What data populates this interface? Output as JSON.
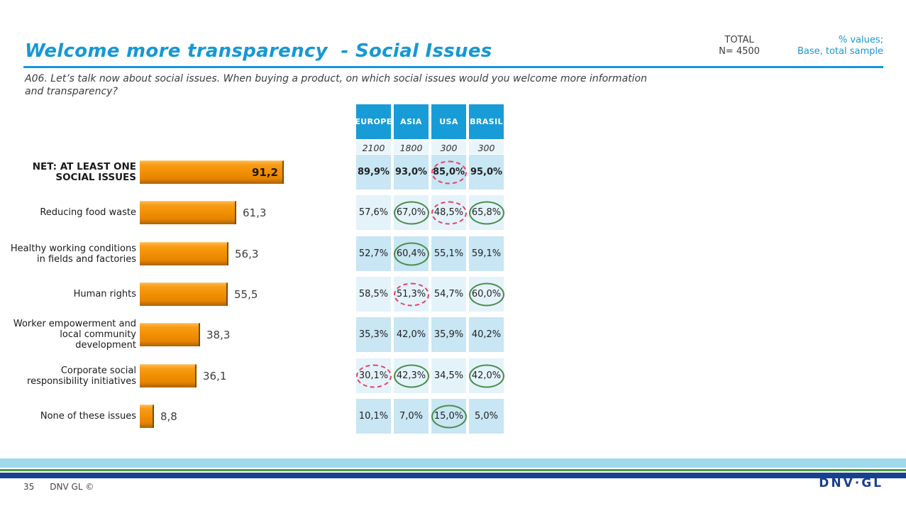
{
  "slide": {
    "title": "Welcome more transparency  - Social Issues",
    "meta": {
      "total_label": "TOTAL",
      "total_base": "N= 4500",
      "note_line1": "% values;",
      "note_line2": "Base, total sample"
    },
    "question": "A06. Let’s talk now about social issues. When buying a product, on which social issues would you welcome more information and transparency?",
    "footer": {
      "page_number": "35",
      "copyright": "DNV GL ©",
      "logo": "DNV·GL"
    }
  },
  "colors": {
    "accent_blue": "#1598D6",
    "table_header_blue": "#189CD8",
    "bar_orange": "#F19000",
    "circle_green": "#4C8C4C",
    "circle_red": "#E8416A",
    "logo_navy": "#1B3F92"
  },
  "chart_data": {
    "type": "bar",
    "orientation": "horizontal",
    "title": "Welcome more transparency - Social Issues",
    "xlabel": "",
    "ylabel": "",
    "xlim": [
      0,
      100
    ],
    "legend": "none",
    "categories": [
      "NET: AT LEAST ONE SOCIAL ISSUES",
      "Reducing food waste",
      "Healthy working conditions in fields and factories",
      "Human rights",
      "Worker empowerment and local community development",
      "Corporate social responsibility initiatives",
      "None of these issues"
    ],
    "values": [
      91.2,
      61.3,
      56.3,
      55.5,
      38.3,
      36.1,
      8.8
    ],
    "value_labels": [
      "91,2",
      "61,3",
      "56,3",
      "55,5",
      "38,3",
      "36,1",
      "8,8"
    ],
    "table": {
      "columns": [
        "EUROPE",
        "ASIA",
        "USA",
        "BRASIL"
      ],
      "bases": [
        "2100",
        "1800",
        "300",
        "300"
      ],
      "rows": [
        {
          "values": [
            "89,9%",
            "93,0%",
            "85,0%",
            "95,0%"
          ],
          "highlights": [
            null,
            null,
            "red",
            null
          ]
        },
        {
          "values": [
            "57,6%",
            "67,0%",
            "48,5%",
            "65,8%"
          ],
          "highlights": [
            null,
            "green",
            "red",
            "green"
          ]
        },
        {
          "values": [
            "52,7%",
            "60,4%",
            "55,1%",
            "59,1%"
          ],
          "highlights": [
            null,
            "green",
            null,
            null
          ]
        },
        {
          "values": [
            "58,5%",
            "51,3%",
            "54,7%",
            "60,0%"
          ],
          "highlights": [
            null,
            "red",
            null,
            "green"
          ]
        },
        {
          "values": [
            "35,3%",
            "42,0%",
            "35,9%",
            "40,2%"
          ],
          "highlights": [
            null,
            null,
            null,
            null
          ]
        },
        {
          "values": [
            "30,1%",
            "42,3%",
            "34,5%",
            "42,0%"
          ],
          "highlights": [
            "red",
            "green",
            null,
            "green"
          ]
        },
        {
          "values": [
            "10,1%",
            "7,0%",
            "15,0%",
            "5,0%"
          ],
          "highlights": [
            null,
            null,
            "green",
            null
          ]
        }
      ],
      "highlight_styles": {
        "green": "solid green ellipse",
        "red": "dashed red ellipse"
      }
    }
  }
}
